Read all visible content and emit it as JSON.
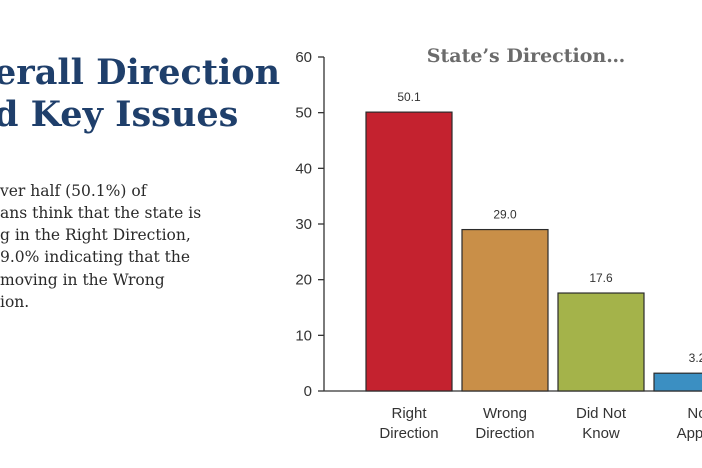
{
  "heading": {
    "line1": "erall Direction",
    "line2": "d Key Issues"
  },
  "body_lines": [
    "ver half (50.1%) of",
    "ans think that the state is",
    "g in the Right Direction,",
    "9.0% indicating that the",
    " moving in the Wrong",
    "ion."
  ],
  "colors": {
    "heading": "#1f3f6b",
    "bars": [
      "#c4222f",
      "#c98f48",
      "#a4b34a",
      "#3b8fc2"
    ]
  },
  "chart_data": {
    "type": "bar",
    "title": "State’s Direction…",
    "categories": [
      [
        "Right",
        "Direction"
      ],
      [
        "Wrong",
        "Direction"
      ],
      [
        "Did Not",
        "Know"
      ],
      [
        "No",
        "Applic"
      ]
    ],
    "values": [
      50.1,
      29.0,
      17.6,
      3.2
    ],
    "value_labels": [
      "50.1",
      "29.0",
      "17.6",
      "3.2"
    ],
    "ylim": [
      0,
      60
    ],
    "yticks": [
      0,
      10,
      20,
      30,
      40,
      50,
      60
    ],
    "xlabel": "",
    "ylabel": "",
    "grid": false
  }
}
